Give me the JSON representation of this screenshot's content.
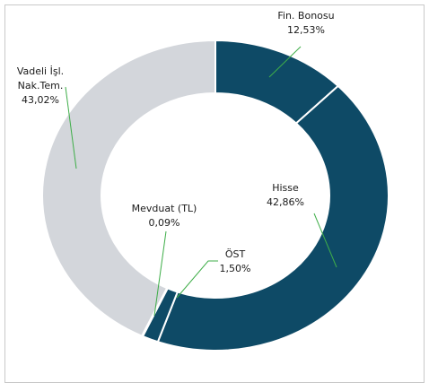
{
  "chart_data": {
    "type": "donut",
    "categories": [
      "Fin. Bonosu",
      "Hisse",
      "ÖST",
      "Mevduat (TL)",
      "Vadeli İşl.\nNak.Tem."
    ],
    "values": [
      12.53,
      42.86,
      1.5,
      0.09,
      43.02
    ],
    "value_labels": [
      "12,53%",
      "42,86%",
      "1,50%",
      "0,09%",
      "43,02%"
    ],
    "colors": [
      "#0e4a66",
      "#0e4a66",
      "#0e4a66",
      "#0e4a66",
      "#d3d6db"
    ]
  }
}
